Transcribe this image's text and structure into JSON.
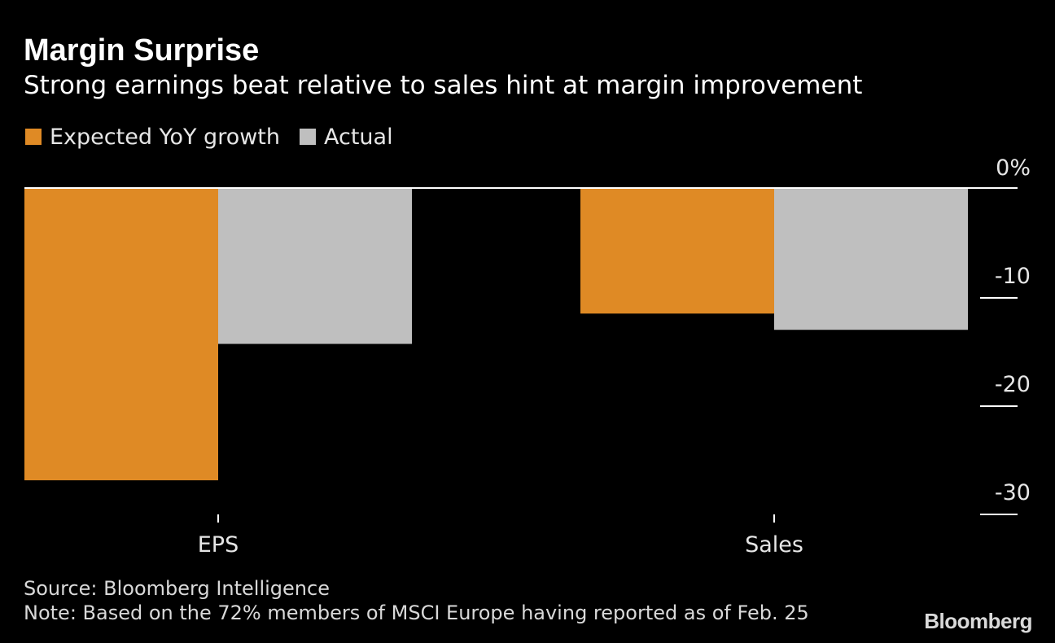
{
  "chart_data": {
    "type": "bar",
    "title": "Margin Surprise",
    "subtitle": "Strong earnings beat relative to sales hint at margin improvement",
    "categories": [
      "EPS",
      "Sales"
    ],
    "series": [
      {
        "name": "Expected YoY growth",
        "color": "#df8a25",
        "values": [
          -27,
          -11.6
        ]
      },
      {
        "name": "Actual",
        "color": "#bfbfbf",
        "values": [
          -14.4,
          -13.1
        ]
      }
    ],
    "yaxis": {
      "ticks": [
        0,
        -10,
        -20,
        -30
      ],
      "tick_labels": [
        "0%",
        "-10",
        "-20",
        "-30"
      ],
      "ylim": [
        -30,
        0
      ],
      "position": "right"
    },
    "xlabel": "",
    "ylabel": "",
    "grid": false,
    "legend": "top-left"
  },
  "footer": {
    "source": "Source: Bloomberg Intelligence",
    "note": "Note: Based on the 72% members of MSCI Europe having reported as of Feb. 25",
    "brand": "Bloomberg"
  }
}
